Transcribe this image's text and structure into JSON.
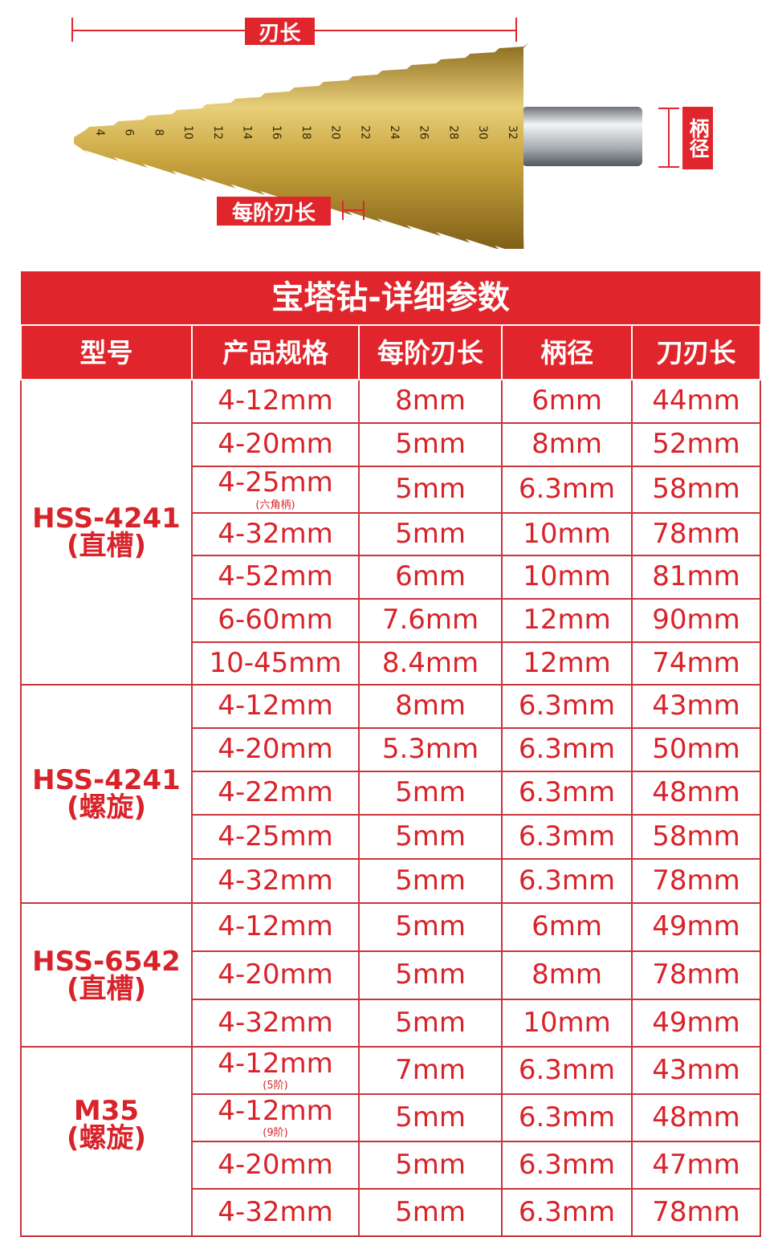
{
  "drill_diagram": {
    "step_labels": [
      "4",
      "6",
      "8",
      "10",
      "12",
      "14",
      "16",
      "18",
      "20",
      "22",
      "24",
      "26",
      "28",
      "30",
      "32"
    ],
    "blade_length_label": "刃长",
    "shank_diameter_label": "柄径",
    "step_length_label": "每阶刃长",
    "colors": {
      "accent": "#e0262c",
      "gold": "#c9a53e",
      "shank": "#b8bcc0"
    }
  },
  "table": {
    "title": "宝塔钻-详细参数",
    "headers": [
      "型号",
      "产品规格",
      "每阶刃长",
      "柄径",
      "刀刃长"
    ],
    "groups": [
      {
        "model": "HSS-4241",
        "type": "(直槽)",
        "rows": [
          {
            "spec": "4-12mm",
            "step": "8mm",
            "shank": "6mm",
            "length": "44mm"
          },
          {
            "spec": "4-20mm",
            "step": "5mm",
            "shank": "8mm",
            "length": "52mm"
          },
          {
            "spec": "4-25mm",
            "note": "(六角柄)",
            "step": "5mm",
            "shank": "6.3mm",
            "length": "58mm"
          },
          {
            "spec": "4-32mm",
            "step": "5mm",
            "shank": "10mm",
            "length": "78mm"
          },
          {
            "spec": "4-52mm",
            "step": "6mm",
            "shank": "10mm",
            "length": "81mm"
          },
          {
            "spec": "6-60mm",
            "step": "7.6mm",
            "shank": "12mm",
            "length": "90mm"
          },
          {
            "spec": "10-45mm",
            "step": "8.4mm",
            "shank": "12mm",
            "length": "74mm"
          }
        ]
      },
      {
        "model": "HSS-4241",
        "type": "(螺旋)",
        "rows": [
          {
            "spec": "4-12mm",
            "step": "8mm",
            "shank": "6.3mm",
            "length": "43mm"
          },
          {
            "spec": "4-20mm",
            "step": "5.3mm",
            "shank": "6.3mm",
            "length": "50mm"
          },
          {
            "spec": "4-22mm",
            "step": "5mm",
            "shank": "6.3mm",
            "length": "48mm"
          },
          {
            "spec": "4-25mm",
            "step": "5mm",
            "shank": "6.3mm",
            "length": "58mm"
          },
          {
            "spec": "4-32mm",
            "step": "5mm",
            "shank": "6.3mm",
            "length": "78mm"
          }
        ]
      },
      {
        "model": "HSS-6542",
        "type": "(直槽)",
        "rows": [
          {
            "spec": "4-12mm",
            "step": "5mm",
            "shank": "6mm",
            "length": "49mm"
          },
          {
            "spec": "4-20mm",
            "step": "5mm",
            "shank": "8mm",
            "length": "78mm"
          },
          {
            "spec": "4-32mm",
            "step": "5mm",
            "shank": "10mm",
            "length": "49mm"
          }
        ]
      },
      {
        "model": "M35",
        "type": "(螺旋)",
        "rows": [
          {
            "spec": "4-12mm",
            "note": "(5阶)",
            "step": "7mm",
            "shank": "6.3mm",
            "length": "43mm"
          },
          {
            "spec": "4-12mm",
            "note": "(9阶)",
            "step": "5mm",
            "shank": "6.3mm",
            "length": "48mm"
          },
          {
            "spec": "4-20mm",
            "step": "5mm",
            "shank": "6.3mm",
            "length": "47mm"
          },
          {
            "spec": "4-32mm",
            "step": "5mm",
            "shank": "6.3mm",
            "length": "78mm"
          }
        ]
      }
    ]
  }
}
